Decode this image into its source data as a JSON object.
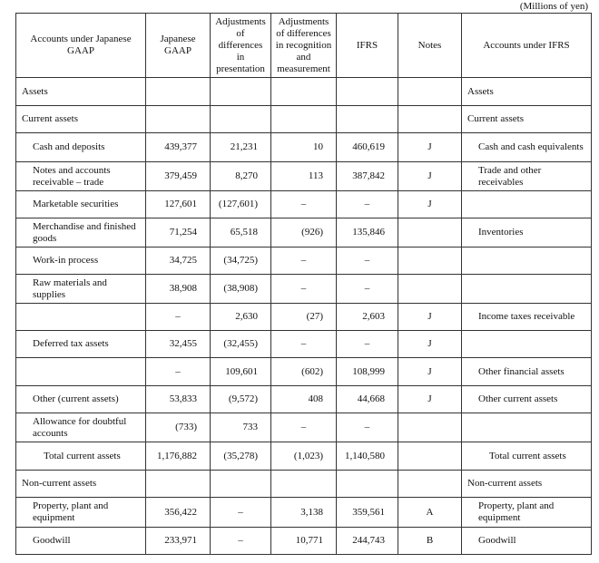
{
  "unit_label": "(Millions of yen)",
  "headers": {
    "jgaap_accounts": "Accounts under Japanese GAAP",
    "jgaap": "Japanese GAAP",
    "adj_presentation": "Adjustments of differences in presentation",
    "adj_recognition": "Adjustments of differences in recognition and measurement",
    "ifrs": "IFRS",
    "notes": "Notes",
    "ifrs_accounts": "Accounts under IFRS"
  },
  "rows": [
    {
      "jgaap_account": "Assets",
      "level": 0,
      "jgaap": "",
      "adj_presentation": "",
      "adj_recognition": "",
      "ifrs": "",
      "notes": "",
      "ifrs_account": "Assets",
      "ifrs_level": 0
    },
    {
      "jgaap_account": "Current assets",
      "level": 0,
      "jgaap": "",
      "adj_presentation": "",
      "adj_recognition": "",
      "ifrs": "",
      "notes": "",
      "ifrs_account": "Current assets",
      "ifrs_level": 0
    },
    {
      "jgaap_account": "Cash and deposits",
      "level": 1,
      "jgaap": "439,377",
      "adj_presentation": "21,231",
      "adj_recognition": "10",
      "ifrs": "460,619",
      "notes": "J",
      "ifrs_account": "Cash and cash equivalents",
      "ifrs_level": 1
    },
    {
      "jgaap_account": "Notes and accounts receivable – trade",
      "level": 1,
      "jgaap": "379,459",
      "adj_presentation": "8,270",
      "adj_recognition": "113",
      "ifrs": "387,842",
      "notes": "J",
      "ifrs_account": "Trade and other receivables",
      "ifrs_level": 1
    },
    {
      "jgaap_account": "Marketable securities",
      "level": 1,
      "jgaap": "127,601",
      "adj_presentation": "(127,601)",
      "adj_recognition": "–",
      "ifrs": "–",
      "notes": "J",
      "ifrs_account": "",
      "ifrs_level": 1
    },
    {
      "jgaap_account": "Merchandise and finished goods",
      "level": 1,
      "jgaap": "71,254",
      "adj_presentation": "65,518",
      "adj_recognition": "(926)",
      "ifrs": "135,846",
      "notes": "",
      "ifrs_account": "Inventories",
      "ifrs_level": 1
    },
    {
      "jgaap_account": "Work-in process",
      "level": 1,
      "jgaap": "34,725",
      "adj_presentation": "(34,725)",
      "adj_recognition": "–",
      "ifrs": "–",
      "notes": "",
      "ifrs_account": "",
      "ifrs_level": 1
    },
    {
      "jgaap_account": "Raw materials and supplies",
      "level": 1,
      "jgaap": "38,908",
      "adj_presentation": "(38,908)",
      "adj_recognition": "–",
      "ifrs": "–",
      "notes": "",
      "ifrs_account": "",
      "ifrs_level": 1
    },
    {
      "jgaap_account": "",
      "level": 1,
      "jgaap": "–",
      "adj_presentation": "2,630",
      "adj_recognition": "(27)",
      "ifrs": "2,603",
      "notes": "J",
      "ifrs_account": "Income taxes receivable",
      "ifrs_level": 1
    },
    {
      "jgaap_account": "Deferred tax assets",
      "level": 1,
      "jgaap": "32,455",
      "adj_presentation": "(32,455)",
      "adj_recognition": "–",
      "ifrs": "–",
      "notes": "J",
      "ifrs_account": "",
      "ifrs_level": 1
    },
    {
      "jgaap_account": "",
      "level": 1,
      "jgaap": "–",
      "adj_presentation": "109,601",
      "adj_recognition": "(602)",
      "ifrs": "108,999",
      "notes": "J",
      "ifrs_account": "Other financial assets",
      "ifrs_level": 1
    },
    {
      "jgaap_account": "Other (current assets)",
      "level": 1,
      "jgaap": "53,833",
      "adj_presentation": "(9,572)",
      "adj_recognition": "408",
      "ifrs": "44,668",
      "notes": "J",
      "ifrs_account": "Other current assets",
      "ifrs_level": 1
    },
    {
      "jgaap_account": "Allowance for doubtful accounts",
      "level": 1,
      "jgaap": "(733)",
      "adj_presentation": "733",
      "adj_recognition": "–",
      "ifrs": "–",
      "notes": "",
      "ifrs_account": "",
      "ifrs_level": 1
    },
    {
      "jgaap_account": "Total current assets",
      "level": 2,
      "jgaap": "1,176,882",
      "adj_presentation": "(35,278)",
      "adj_recognition": "(1,023)",
      "ifrs": "1,140,580",
      "notes": "",
      "ifrs_account": "Total current assets",
      "ifrs_level": 2
    },
    {
      "jgaap_account": "Non-current assets",
      "level": 0,
      "jgaap": "",
      "adj_presentation": "",
      "adj_recognition": "",
      "ifrs": "",
      "notes": "",
      "ifrs_account": "Non-current assets",
      "ifrs_level": 0
    },
    {
      "jgaap_account": "Property, plant and equipment",
      "level": 1,
      "jgaap": "356,422",
      "adj_presentation": "–",
      "adj_recognition": "3,138",
      "ifrs": "359,561",
      "notes": "A",
      "ifrs_account": "Property, plant and equipment",
      "ifrs_level": 1
    },
    {
      "jgaap_account": "Goodwill",
      "level": 1,
      "jgaap": "233,971",
      "adj_presentation": "–",
      "adj_recognition": "10,771",
      "ifrs": "244,743",
      "notes": "B",
      "ifrs_account": "Goodwill",
      "ifrs_level": 1
    }
  ]
}
